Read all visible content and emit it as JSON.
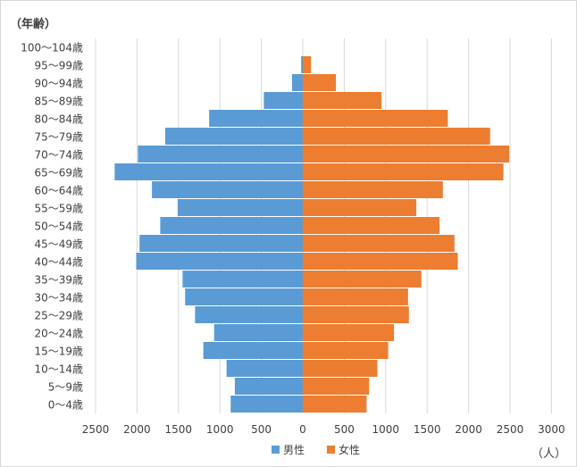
{
  "chart_data": {
    "type": "bar",
    "orientation": "horizontal-population-pyramid",
    "y_axis_title": "（年齢）",
    "x_axis_unit": "（人）",
    "categories": [
      "0〜4歳",
      "5〜9歳",
      "10〜14歳",
      "15〜19歳",
      "20〜24歳",
      "25〜29歳",
      "30〜34歳",
      "35〜39歳",
      "40〜44歳",
      "45〜49歳",
      "50〜54歳",
      "55〜59歳",
      "60〜64歳",
      "65〜69歳",
      "70〜74歳",
      "75〜79歳",
      "80〜84歳",
      "85〜89歳",
      "90〜94歳",
      "95〜99歳",
      "100〜104歳"
    ],
    "series": [
      {
        "name": "男性",
        "color": "#5B9BD5",
        "side": "left",
        "values": [
          870,
          820,
          920,
          1200,
          1070,
          1300,
          1420,
          1450,
          2010,
          1970,
          1720,
          1510,
          1820,
          2270,
          1990,
          1660,
          1130,
          470,
          130,
          20,
          0
        ]
      },
      {
        "name": "女性",
        "color": "#ED7D31",
        "side": "right",
        "values": [
          770,
          800,
          900,
          1030,
          1100,
          1280,
          1270,
          1430,
          1870,
          1830,
          1650,
          1370,
          1690,
          2420,
          2490,
          2260,
          1750,
          950,
          400,
          100,
          0
        ]
      }
    ],
    "x_ticks": [
      "2500",
      "2000",
      "1500",
      "1000",
      "500",
      "0",
      "500",
      "1000",
      "1500",
      "2000",
      "2500",
      "3000"
    ],
    "xlim": [
      -2500,
      3000
    ],
    "grid": "vertical",
    "legend": "bottom"
  }
}
